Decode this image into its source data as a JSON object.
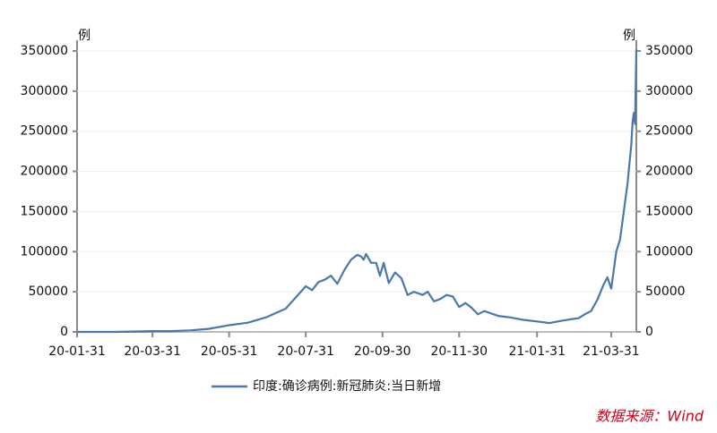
{
  "chart_data": {
    "type": "line",
    "y_unit": "例",
    "source": "数据来源：Wind",
    "x": [
      "20-01-31",
      "20-03-01",
      "20-03-31",
      "20-04-15",
      "20-04-30",
      "20-05-15",
      "20-05-31",
      "20-06-15",
      "20-06-30",
      "20-07-15",
      "20-07-31",
      "20-08-05",
      "20-08-10",
      "20-08-15",
      "20-08-20",
      "20-08-25",
      "20-08-31",
      "20-09-05",
      "20-09-10",
      "20-09-13",
      "20-09-15",
      "20-09-17",
      "20-09-21",
      "20-09-25",
      "20-09-28",
      "20-10-01",
      "20-10-05",
      "20-10-10",
      "20-10-15",
      "20-10-20",
      "20-10-25",
      "20-11-01",
      "20-11-05",
      "20-11-10",
      "20-11-15",
      "20-11-20",
      "20-11-25",
      "20-11-30",
      "20-12-05",
      "20-12-10",
      "20-12-15",
      "20-12-20",
      "20-12-31",
      "21-01-10",
      "21-01-20",
      "21-01-31",
      "21-02-10",
      "21-02-20",
      "21-02-28",
      "21-03-05",
      "21-03-10",
      "21-03-15",
      "21-03-20",
      "21-03-25",
      "21-03-28",
      "21-03-31",
      "21-04-04",
      "21-04-07",
      "21-04-10",
      "21-04-13",
      "21-04-16",
      "21-04-17",
      "21-04-18",
      "21-04-19",
      "21-04-20"
    ],
    "series": [
      {
        "name": "印度:确诊病例:新冠肺炎:当日新增",
        "color": "#4a77ad",
        "values": [
          1,
          0,
          1000,
          1000,
          1800,
          3900,
          8400,
          11500,
          18500,
          29000,
          57000,
          52000,
          62000,
          65000,
          70000,
          60000,
          78000,
          90000,
          96000,
          94000,
          90000,
          97000,
          86000,
          86000,
          70000,
          86000,
          61000,
          74000,
          67000,
          46000,
          50000,
          46000,
          50000,
          38000,
          41000,
          46000,
          44000,
          31000,
          36000,
          30000,
          22000,
          26000,
          20000,
          18000,
          15000,
          13000,
          11000,
          14000,
          16000,
          17000,
          22000,
          26000,
          40000,
          59000,
          68000,
          54000,
          100000,
          115000,
          150000,
          185000,
          234000,
          261000,
          273000,
          259000,
          352000
        ]
      }
    ],
    "xlim": [
      "20-01-31",
      "21-04-20"
    ],
    "xticks": [
      "20-01-31",
      "20-03-31",
      "20-05-31",
      "20-07-31",
      "20-09-30",
      "20-11-30",
      "21-01-31",
      "21-03-31"
    ],
    "ylim": [
      0,
      350000
    ],
    "yticks": [
      0,
      50000,
      100000,
      150000,
      200000,
      250000,
      300000,
      350000
    ]
  }
}
